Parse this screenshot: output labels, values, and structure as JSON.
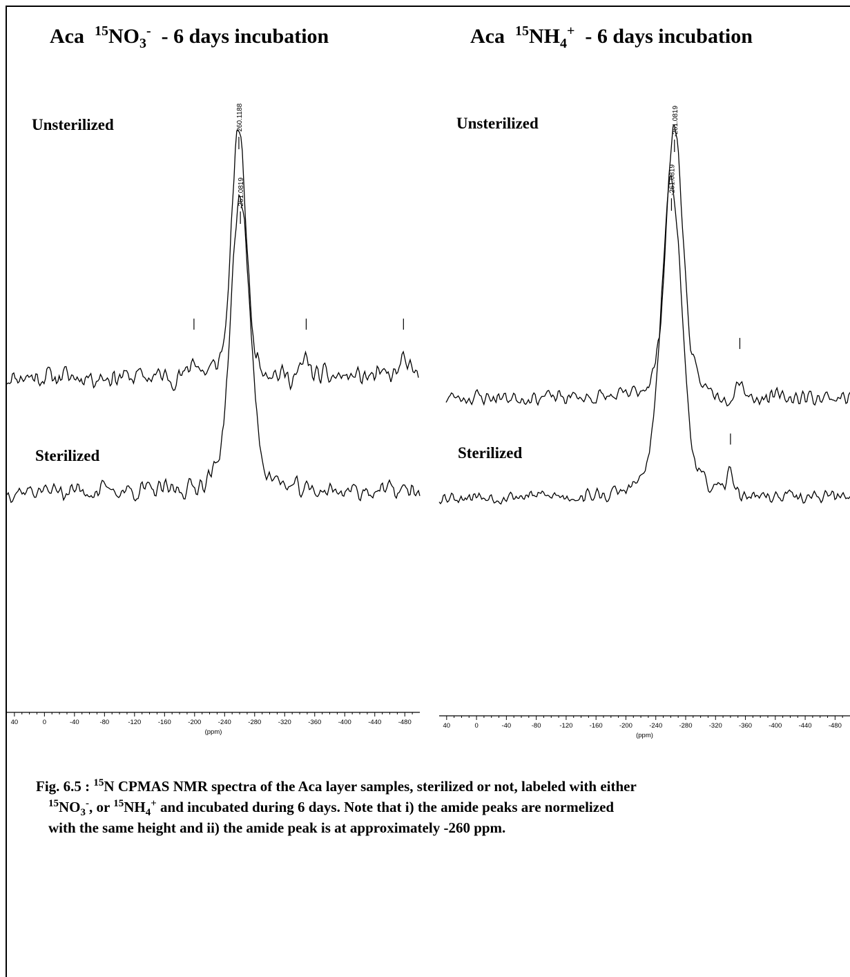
{
  "titles": {
    "left": {
      "prefix": "Aca",
      "iso": "15",
      "ion": "NO",
      "ion_sub": "3",
      "charge": "-",
      "suffix": "- 6 days incubation"
    },
    "right": {
      "prefix": "Aca",
      "iso": "15",
      "ion": "NH",
      "ion_sub": "4",
      "charge": "+",
      "suffix": "- 6 days incubation"
    }
  },
  "panel_labels": {
    "left_top": "Unsterilized",
    "right_top": "Unsterilized",
    "left_bottom": "Sterilized",
    "right_bottom": "Sterilized"
  },
  "caption": {
    "line1_a": "Fig. 6.5 :  ",
    "line1_iso": "15",
    "line1_b": "N CPMAS NMR spectra of the Aca layer samples, sterilized or not, labeled with either",
    "line2_iso1": "15",
    "line2_a": "NO",
    "line2_sub1": "3",
    "line2_sup1": "-",
    "line2_b": ", or ",
    "line2_iso2": "15",
    "line2_c": "NH",
    "line2_sub2": "4",
    "line2_sup2": "+",
    "line2_d": " and incubated during 6 days.  Note that i) the amide peaks are normelized",
    "line3": "with the same height and ii) the amide peak is at approximately -260 ppm."
  },
  "colors": {
    "line": "#000000",
    "background": "#ffffff"
  },
  "chart_data": [
    {
      "type": "line",
      "panel": "left_top",
      "title": "Unsterilized",
      "xlim": [
        50,
        -500
      ],
      "peak_label": "-260.1188",
      "peaks": [
        {
          "ppm": -260,
          "height": 1.0,
          "width": 9
        }
      ],
      "minor_markers_ppm": [
        -200,
        -350,
        -480
      ],
      "noise_amplitude": 0.13,
      "noise_seed": 11,
      "x": [
        50,
        0,
        -100,
        -200,
        -240,
        -255,
        -260,
        -265,
        -280,
        -350,
        -480,
        -500
      ],
      "y": [
        0.02,
        0.0,
        0.03,
        0.1,
        0.12,
        0.6,
        1.0,
        0.6,
        0.1,
        0.15,
        0.2,
        0.1
      ]
    },
    {
      "type": "line",
      "panel": "right_top",
      "title": "Unsterilized",
      "xlim": [
        50,
        -500
      ],
      "peak_label": "-261.0819",
      "peaks": [
        {
          "ppm": -261,
          "height": 1.0,
          "width": 11
        }
      ],
      "minor_markers_ppm": [
        -350
      ],
      "noise_amplitude": 0.1,
      "noise_seed": 23,
      "x": [
        50,
        0,
        -100,
        -200,
        -240,
        -255,
        -261,
        -267,
        -290,
        -350,
        -480,
        -500
      ],
      "y": [
        0.0,
        0.0,
        0.02,
        0.08,
        0.15,
        0.65,
        1.0,
        0.65,
        0.08,
        0.1,
        0.05,
        0.02
      ]
    },
    {
      "type": "line",
      "panel": "left_bottom",
      "title": "Sterilized",
      "xlim": [
        50,
        -500
      ],
      "xlabel": "(ppm)",
      "xticks": [
        40,
        0,
        -40,
        -80,
        -120,
        -160,
        -200,
        -240,
        -280,
        -320,
        -360,
        -400,
        -440,
        -480
      ],
      "peak_label": "-261.0819",
      "peaks": [
        {
          "ppm": -261,
          "height": 1.0,
          "width": 12
        }
      ],
      "minor_markers_ppm": [],
      "noise_amplitude": 0.12,
      "noise_seed": 37,
      "x": [
        50,
        0,
        -100,
        -200,
        -240,
        -255,
        -261,
        -268,
        -290,
        -350,
        -480,
        -500
      ],
      "y": [
        0.25,
        0.05,
        0.03,
        0.08,
        0.2,
        0.7,
        1.0,
        0.7,
        0.05,
        0.1,
        -0.25,
        0.05
      ]
    },
    {
      "type": "line",
      "panel": "right_bottom",
      "title": "Sterilized",
      "xlim": [
        50,
        -500
      ],
      "xlabel": "(ppm)",
      "xticks": [
        40,
        0,
        -40,
        -80,
        -120,
        -160,
        -200,
        -240,
        -280,
        -320,
        -360,
        -400,
        -440,
        -480
      ],
      "peak_label": "-261.0819",
      "peaks": [
        {
          "ppm": -261,
          "height": 1.0,
          "width": 13
        }
      ],
      "minor_markers_ppm": [
        -340
      ],
      "noise_amplitude": 0.09,
      "noise_seed": 53,
      "x": [
        50,
        0,
        -100,
        -200,
        -240,
        -255,
        -261,
        -268,
        -290,
        -340,
        -420,
        -500
      ],
      "y": [
        0.0,
        0.02,
        0.0,
        0.05,
        0.25,
        0.7,
        1.0,
        0.7,
        0.05,
        0.2,
        -0.2,
        0.1
      ]
    }
  ]
}
